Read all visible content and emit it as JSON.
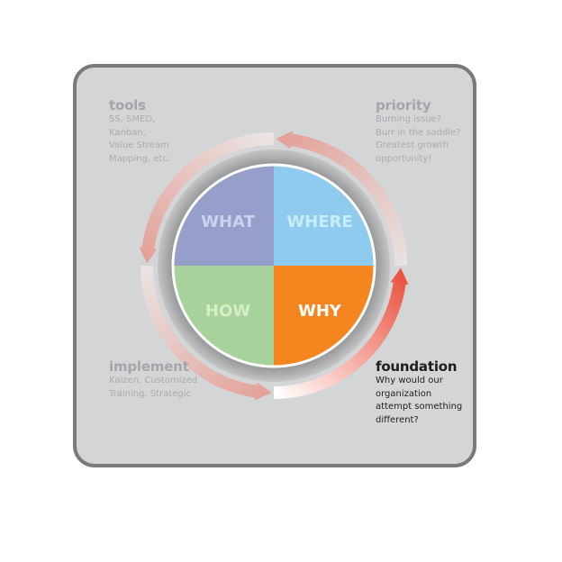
{
  "quadrants": [
    {
      "label": "WHAT",
      "fill": "#959fc9",
      "text_color": "#c9d3f0"
    },
    {
      "label": "WHERE",
      "fill": "#8ecbee",
      "text_color": "#c9ecfa"
    },
    {
      "label": "HOW",
      "fill": "#a8d29c",
      "text_color": "#d6edc9"
    },
    {
      "label": "WHY",
      "fill": "#f5861f",
      "text_color": "#ffffff"
    }
  ],
  "blocks": {
    "tools": {
      "title": "tools",
      "lines": [
        "5S, SMED,",
        "Kanban,",
        "Value Stream",
        "Mapping, etc."
      ]
    },
    "priority": {
      "title": "priority",
      "lines": [
        "Burning issue?",
        "Burr in the saddle?",
        "Greatest growth",
        "opportunity!"
      ]
    },
    "implement": {
      "title": "implement",
      "lines": [
        "Kaizen, Customized",
        "Training, Strategic"
      ]
    },
    "foundation": {
      "title": "foundation",
      "lines": [
        "Why would our",
        "organization",
        "attempt something",
        "different?"
      ]
    }
  },
  "arcs": [
    {
      "stage": "foundation",
      "tail_color": "#ffffff",
      "head_color": "#ea4f3b"
    },
    {
      "stage": "priority",
      "tail_color": "#e6e2e1",
      "head_color": "#e3a097"
    },
    {
      "stage": "tools",
      "tail_color": "#ebe6e5",
      "head_color": "#e3a097"
    },
    {
      "stage": "implement",
      "tail_color": "#e9e3e2",
      "head_color": "#e3a097"
    }
  ]
}
